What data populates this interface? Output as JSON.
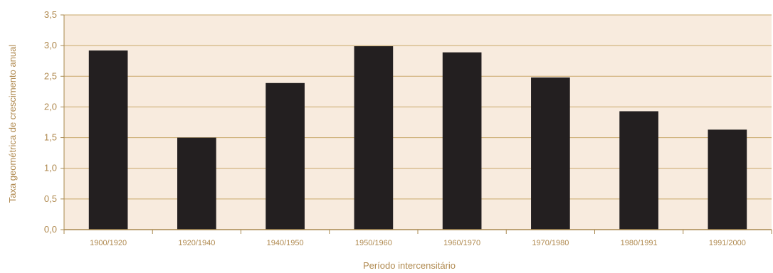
{
  "colors": {
    "plot_background": "#f8ebde",
    "bar": "#231f20",
    "grid": "#c9a86a",
    "text": "#b08a50",
    "axis": "#a8884f"
  },
  "chart_data": {
    "type": "bar",
    "xlabel": "Período intercensitário",
    "ylabel": "Taxa geométrica de crescimento  anual",
    "ylim": [
      0,
      3.5
    ],
    "yticks": [
      "0,0",
      "0,5",
      "1,0",
      "1,5",
      "2,0",
      "2,5",
      "3,0",
      "3,5"
    ],
    "categories": [
      "1900/1920",
      "1920/1940",
      "1940/1950",
      "1950/1960",
      "1960/1970",
      "1970/1980",
      "1980/1991",
      "1991/2000"
    ],
    "values": [
      2.92,
      1.5,
      2.39,
      2.99,
      2.89,
      2.48,
      1.93,
      1.63
    ],
    "grid": true,
    "legend": false
  }
}
